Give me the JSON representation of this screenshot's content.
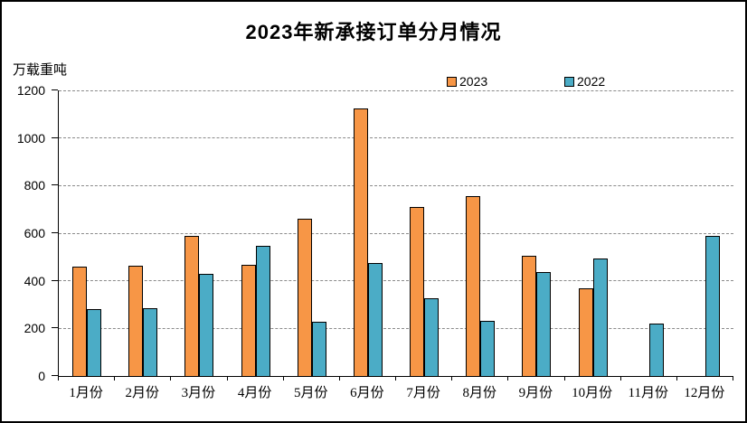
{
  "header": {
    "title": "2023年新承接订单分月情况",
    "unit_label": "万载重吨"
  },
  "legend": {
    "series_2023_label": "2023",
    "series_2022_label": "2022"
  },
  "colors": {
    "series_2023": "#F79646",
    "series_2022": "#4BACC6",
    "bar_border": "#000000",
    "gridline": "#8a8a8a",
    "axis": "#000000"
  },
  "chart_data": {
    "type": "bar",
    "title": "2023年新承接订单分月情况",
    "xlabel": "",
    "ylabel": "万载重吨",
    "ylim": [
      0,
      1200
    ],
    "yticks": [
      0,
      200,
      400,
      600,
      800,
      1000,
      1200
    ],
    "grid": true,
    "legend_position": "top",
    "categories": [
      "1月份",
      "2月份",
      "3月份",
      "4月份",
      "5月份",
      "6月份",
      "7月份",
      "8月份",
      "9月份",
      "10月份",
      "11月份",
      "12月份"
    ],
    "series": [
      {
        "name": "2023",
        "color": "#F79646",
        "values": [
          460,
          464,
          590,
          468,
          659,
          1124,
          710,
          754,
          504,
          370,
          null,
          null
        ]
      },
      {
        "name": "2022",
        "color": "#4BACC6",
        "values": [
          281,
          284,
          430,
          545,
          229,
          476,
          325,
          230,
          438,
          495,
          219,
          590
        ]
      }
    ]
  }
}
